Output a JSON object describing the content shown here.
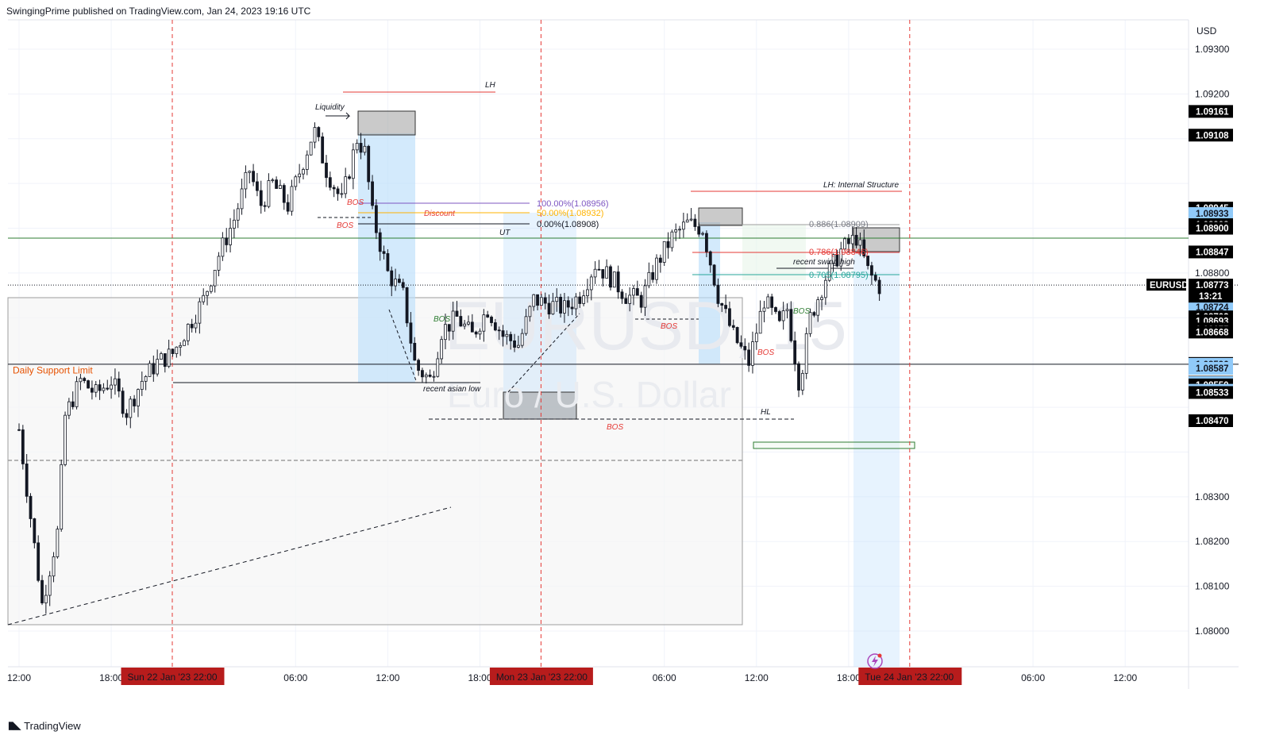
{
  "header": {
    "text": "SwingingPrime published on TradingView.com, Jan 24, 2023 19:16 UTC"
  },
  "footer": {
    "logo_icon": "tradingview-logo-icon",
    "brand": "TradingView"
  },
  "watermark": {
    "symbol": "EURUSD, 15",
    "name": "Euro / U.S. Dollar"
  },
  "colors": {
    "up": "#131722",
    "down": "#131722",
    "session_line": "#e53935",
    "support": "#e65100",
    "blue_zone": "#bbdefb",
    "grey_zone": "#9e9e9e",
    "green_line": "#2e7d32",
    "purple": "#7e57c2",
    "teal": "#26a69a",
    "red": "#e53935"
  },
  "chart_data": {
    "type": "candlestick",
    "symbol": "EURUSD",
    "timeframe": "15",
    "currency": "USD",
    "y_range": [
      1.0793,
      1.0934
    ],
    "y_ticks": [
      "1.09300",
      "1.09200",
      "1.08900",
      "1.08800",
      "1.08300",
      "1.08200",
      "1.08100",
      "1.08000"
    ],
    "x_tick_labels": [
      {
        "label": "12:00",
        "hour": 0
      },
      {
        "label": "18:00",
        "hour": 6
      },
      {
        "label": "06:00",
        "hour": 18
      },
      {
        "label": "12:00",
        "hour": 24
      },
      {
        "label": "18:00",
        "hour": 30
      },
      {
        "label": "06:00",
        "hour": 42
      },
      {
        "label": "12:00",
        "hour": 48
      },
      {
        "label": "18:00",
        "hour": 54
      },
      {
        "label": "06:00",
        "hour": 66
      },
      {
        "label": "12:00",
        "hour": 72
      }
    ],
    "session_markers": [
      {
        "label": "Sun 22 Jan '23   22:00",
        "hour": 10
      },
      {
        "label": "Mon 23 Jan '23   22:00",
        "hour": 34
      },
      {
        "label": "Tue 24 Jan '23   22:00",
        "hour": 58
      }
    ],
    "current_price": {
      "symbol_label": "EURUSD",
      "price": "1.08773",
      "countdown": "13:21",
      "value": 1.08773
    },
    "price_labels": [
      {
        "text": "1.09161",
        "value": 1.09161,
        "style": "dark"
      },
      {
        "text": "1.09108",
        "value": 1.09108,
        "style": "dark"
      },
      {
        "text": "1.08945",
        "value": 1.08945,
        "style": "dark"
      },
      {
        "text": "1.08933",
        "value": 1.08933,
        "style": "light"
      },
      {
        "text": "1.08908",
        "value": 1.08908,
        "style": "dark"
      },
      {
        "text": "1.08900",
        "value": 1.089,
        "style": "dark"
      },
      {
        "text": "1.08847",
        "value": 1.08847,
        "style": "dark"
      },
      {
        "text": "1.08724",
        "value": 1.08724,
        "style": "light"
      },
      {
        "text": "1.08702",
        "value": 1.08702,
        "style": "dark"
      },
      {
        "text": "1.08693",
        "value": 1.08693,
        "style": "dark"
      },
      {
        "text": "1.08675",
        "value": 1.08675,
        "style": "dark"
      },
      {
        "text": "1.08668",
        "value": 1.08668,
        "style": "dark"
      },
      {
        "text": "1.08598",
        "value": 1.08598,
        "style": "dark"
      },
      {
        "text": "1.08596",
        "value": 1.08596,
        "style": "light"
      },
      {
        "text": "1.08587",
        "value": 1.08587,
        "style": "light"
      },
      {
        "text": "1.08556",
        "value": 1.08556,
        "style": "dark"
      },
      {
        "text": "1.08555",
        "value": 1.08555,
        "style": "light"
      },
      {
        "text": "1.08550",
        "value": 1.0855,
        "style": "dark"
      },
      {
        "text": "1.08538",
        "value": 1.08538,
        "style": "light"
      },
      {
        "text": "1.08533",
        "value": 1.08533,
        "style": "dark"
      },
      {
        "text": "1.08470",
        "value": 1.0847,
        "style": "dark"
      }
    ],
    "key_levels": [
      {
        "name": "Daily Support Limit",
        "value": 1.0859
      }
    ],
    "fib_levels": [
      {
        "label": "100.00%(1.08956)",
        "value": 1.08956
      },
      {
        "label": "50.00%(1.08932)",
        "value": 1.08932
      },
      {
        "label": "0.00%(1.08908)",
        "value": 1.08908
      },
      {
        "label": "0.886(1.08909)",
        "value": 1.08909
      },
      {
        "label": "0.786(1.08846)",
        "value": 1.08846
      },
      {
        "label": "0.705(1.08795)",
        "value": 1.08795
      }
    ],
    "annotations": [
      "LH",
      "Liquidity",
      "BOS",
      "BOS",
      "Discount",
      "UT",
      "BOS",
      "recent asian low",
      "BOS",
      "BOS",
      "LH: Internal Structure",
      "recent swing high",
      "BOS",
      "BOS",
      "HL"
    ],
    "series": [
      {
        "name": "EURUSD",
        "path": [
          [
            0,
            1.0845
          ],
          [
            1.5,
            1.0806
          ],
          [
            2.5,
            1.0822
          ],
          [
            3,
            1.0848
          ],
          [
            4,
            1.0856
          ],
          [
            5,
            1.0853
          ],
          [
            6,
            1.0856
          ],
          [
            7,
            1.0849
          ],
          [
            8,
            1.0856
          ],
          [
            9,
            1.086
          ],
          [
            10,
            1.0862
          ],
          [
            11,
            1.0868
          ],
          [
            12,
            1.0874
          ],
          [
            13,
            1.0884
          ],
          [
            14,
            1.0892
          ],
          [
            15,
            1.0903
          ],
          [
            15.7,
            1.0895
          ],
          [
            16.5,
            1.09
          ],
          [
            17.5,
            1.0895
          ],
          [
            18.5,
            1.0905
          ],
          [
            19.2,
            1.0912
          ],
          [
            20,
            1.0903
          ],
          [
            21,
            1.0896
          ],
          [
            22,
            1.091
          ],
          [
            22.5,
            1.0907
          ],
          [
            23,
            1.0893
          ],
          [
            24,
            1.088
          ],
          [
            25,
            1.0875
          ],
          [
            25.8,
            1.0859
          ],
          [
            26.8,
            1.0856
          ],
          [
            27.5,
            1.0867
          ],
          [
            28.5,
            1.087
          ],
          [
            29.5,
            1.0866
          ],
          [
            30.5,
            1.0872
          ],
          [
            31.5,
            1.0866
          ],
          [
            32.5,
            1.0864
          ],
          [
            33.5,
            1.0874
          ],
          [
            34.5,
            1.0873
          ],
          [
            35.5,
            1.0872
          ],
          [
            36.5,
            1.0875
          ],
          [
            37.5,
            1.0882
          ],
          [
            38.5,
            1.0879
          ],
          [
            39.5,
            1.0875
          ],
          [
            40.5,
            1.0874
          ],
          [
            41.5,
            1.0882
          ],
          [
            42.5,
            1.0888
          ],
          [
            43.5,
            1.0891
          ],
          [
            44.5,
            1.089
          ],
          [
            45.5,
            1.0875
          ],
          [
            46.5,
            1.0866
          ],
          [
            47.5,
            1.086
          ],
          [
            48.5,
            1.0874
          ],
          [
            49.5,
            1.0868
          ],
          [
            50,
            1.0872
          ],
          [
            50.8,
            1.0855
          ],
          [
            51.5,
            1.087
          ],
          [
            52.5,
            1.0879
          ],
          [
            53.5,
            1.0885
          ],
          [
            54.5,
            1.0888
          ],
          [
            55.3,
            1.088
          ],
          [
            56,
            1.0877
          ]
        ]
      }
    ]
  }
}
